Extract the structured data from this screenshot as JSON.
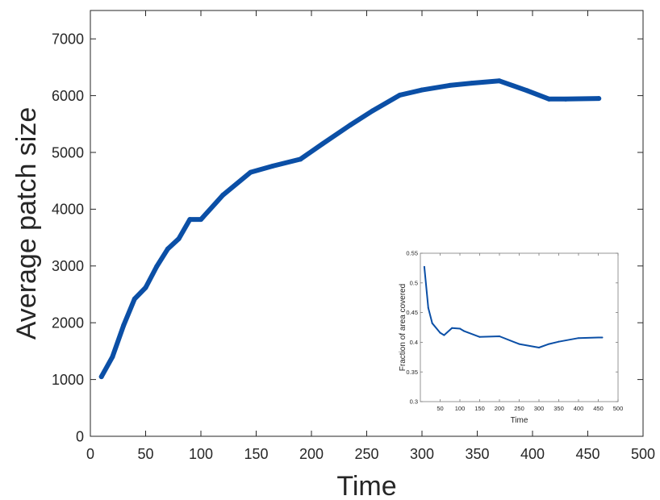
{
  "chart_data": [
    {
      "type": "line",
      "xlabel": "Time",
      "ylabel": "Average patch size",
      "xlim": [
        0,
        500
      ],
      "ylim": [
        0,
        7500
      ],
      "xticks": [
        "0",
        "50",
        "100",
        "150",
        "200",
        "250",
        "300",
        "350",
        "400",
        "450",
        "500"
      ],
      "yticks": [
        "0",
        "1000",
        "2000",
        "3000",
        "4000",
        "5000",
        "6000",
        "7000"
      ],
      "grid": false,
      "series": [
        {
          "color": "#0b4fa6",
          "x": [
            10,
            20,
            30,
            40,
            50,
            60,
            70,
            80,
            90,
            100,
            120,
            145,
            165,
            190,
            210,
            235,
            255,
            280,
            300,
            325,
            345,
            370,
            395,
            415,
            430,
            460
          ],
          "y": [
            1050,
            1400,
            1950,
            2420,
            2620,
            2990,
            3300,
            3480,
            3820,
            3820,
            4250,
            4650,
            4760,
            4880,
            5150,
            5480,
            5730,
            6010,
            6100,
            6180,
            6220,
            6260,
            6090,
            5940,
            5940,
            5950
          ]
        }
      ]
    },
    {
      "type": "line",
      "xlabel": "Time",
      "ylabel": "Fraction of area covered",
      "xlim": [
        0,
        500
      ],
      "ylim": [
        0.3,
        0.55
      ],
      "xticks": [
        "50",
        "100",
        "150",
        "200",
        "250",
        "300",
        "350",
        "400",
        "450",
        "500"
      ],
      "yticks": [
        "0.3",
        "0.35",
        "0.4",
        "0.45",
        "0.5",
        "0.55"
      ],
      "grid": false,
      "series": [
        {
          "color": "#0b4fa6",
          "x": [
            10,
            20,
            30,
            50,
            60,
            80,
            100,
            110,
            150,
            200,
            250,
            300,
            325,
            350,
            400,
            450,
            460
          ],
          "y": [
            0.527,
            0.458,
            0.432,
            0.416,
            0.412,
            0.424,
            0.423,
            0.419,
            0.409,
            0.41,
            0.397,
            0.391,
            0.397,
            0.401,
            0.407,
            0.408,
            0.408
          ]
        }
      ]
    }
  ],
  "snapshots": [
    {
      "id": "early",
      "caption": ""
    },
    {
      "id": "middle",
      "caption": ""
    },
    {
      "id": "late",
      "caption": ""
    }
  ]
}
